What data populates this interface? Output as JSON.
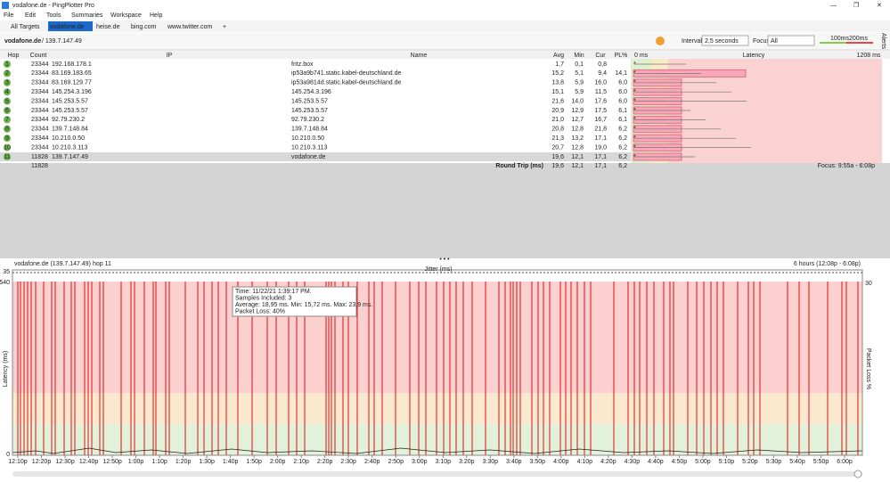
{
  "window": {
    "title": "vodafone.de - PingPlotter Pro"
  },
  "menu": [
    "File",
    "Edit",
    "Tools",
    "Summaries",
    "Workspace",
    "Help"
  ],
  "tabs": [
    "All Targets",
    "vodafone.de",
    "heise.de",
    "bing.com",
    "www.twitter.com"
  ],
  "toolbar": {
    "target": "vodafone.de",
    "ip": "/ 139.7.147.49",
    "interval_label": "Interval",
    "interval": "2,5 seconds",
    "focus_label": "Focus",
    "focus": "All",
    "scale_low": "100ms",
    "scale_high": "200ms",
    "alerts": "Alerts"
  },
  "table": {
    "headers": [
      "Hop",
      "Count",
      "IP",
      "Name",
      "Avg",
      "Min",
      "Cur",
      "PL%",
      "0 ms",
      "Latency",
      "1208 ms"
    ],
    "rows": [
      [
        1,
        23344,
        "192.168.178.1",
        "fritz.box",
        "1,7",
        "0,1",
        "0,8"
      ],
      [
        2,
        23344,
        "83.169.183.65",
        "ip53a9b741.static.kabel-deutschland.de",
        "15,2",
        "5,1",
        "9,4",
        "14,1"
      ],
      [
        3,
        23344,
        "83.169.129.77",
        "ip53a9814d.static.kabel-deutschland.de",
        "13,8",
        "5,9",
        "16,0",
        "6,0"
      ],
      [
        4,
        23344,
        "145.254.3.196",
        "145.254.3.196",
        "15,1",
        "5,9",
        "11,5",
        "6,0"
      ],
      [
        5,
        23344,
        "145.253.5.57",
        "145.253.5.57",
        "21,6",
        "14,0",
        "17,6",
        "6,0"
      ],
      [
        6,
        23344,
        "145.253.5.57",
        "145.253.5.57",
        "20,9",
        "12,9",
        "17,5",
        "6,1"
      ],
      [
        7,
        23344,
        "92.79.230.2",
        "92.79.230.2",
        "21,0",
        "12,7",
        "16,7",
        "6,1"
      ],
      [
        8,
        23344,
        "139.7.148.84",
        "139.7.148.84",
        "20,8",
        "12,8",
        "21,8",
        "6,2"
      ],
      [
        9,
        23344,
        "10.210.0.50",
        "10.210.0.50",
        "21,3",
        "13,2",
        "17,1",
        "6,2"
      ],
      [
        10,
        23344,
        "10.210.3.113",
        "10.210.3.113",
        "20,7",
        "12,8",
        "19,0",
        "6,2"
      ],
      [
        11,
        11828,
        "139.7.147.49",
        "vodafone.de",
        "19,6",
        "12,1",
        "17,1",
        "6,2"
      ]
    ],
    "summary": {
      "count": "11828",
      "label": "Round Trip (ms)",
      "avg": "19,6",
      "min": "12,1",
      "cur": "17,1",
      "pl": "6,2",
      "focus": "Focus: 9:55a - 6:08p"
    }
  },
  "graph": {
    "title": "vodafone.de (139.7.147.49) hop 11",
    "range": "6 hours (12:08p - 6:08p)",
    "jitter_label": "Jitter (ms)",
    "jitter_max": "35",
    "latency_max": "540",
    "latency_min": "0",
    "loss_max": "30",
    "y_label": "Latency (ms)",
    "y2_label": "Packet Loss %",
    "xticks": [
      "12:10p",
      "12:20p",
      "12:30p",
      "12:40p",
      "12:50p",
      "1:00p",
      "1:10p",
      "1:20p",
      "1:30p",
      "1:40p",
      "1:50p",
      "2:00p",
      "2:10p",
      "2:20p",
      "2:30p",
      "2:40p",
      "2:50p",
      "3:00p",
      "3:10p",
      "3:20p",
      "3:30p",
      "3:40p",
      "3:50p",
      "4:00p",
      "4:10p",
      "4:20p",
      "4:30p",
      "4:40p",
      "4:50p",
      "5:00p",
      "5:10p",
      "5:20p",
      "5:30p",
      "5:40p",
      "5:50p",
      "6:00p"
    ],
    "tooltip": [
      "Time: 11/22/21 1:39:17 PM.",
      "Samples Included: 3",
      "Average: 18,95 ms. Min: 15,72 ms. Max: 23,9 ms.",
      "Packet Loss: 40%"
    ]
  }
}
